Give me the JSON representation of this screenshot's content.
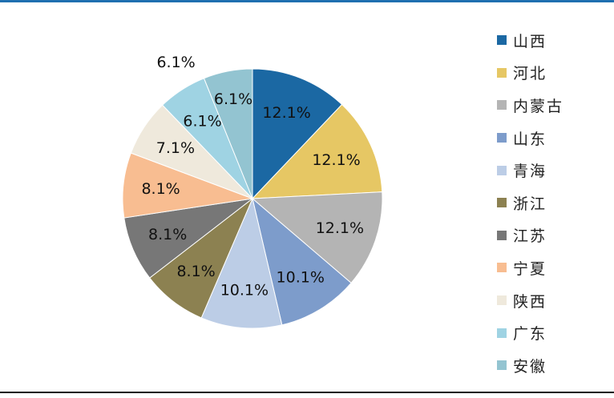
{
  "chart_data": {
    "type": "pie",
    "title": "",
    "start_angle_deg": 0,
    "direction": "clockwise",
    "legend_position": "right",
    "slices": [
      {
        "name": "山西",
        "value": 12.1,
        "label": "12.1%",
        "color": "#1b68a3"
      },
      {
        "name": "河北",
        "value": 12.1,
        "label": "12.1%",
        "color": "#e6c764"
      },
      {
        "name": "内蒙古",
        "value": 12.1,
        "label": "12.1%",
        "color": "#b4b4b4"
      },
      {
        "name": "山东",
        "value": 10.1,
        "label": "10.1%",
        "color": "#7d9ccb"
      },
      {
        "name": "青海",
        "value": 10.1,
        "label": "10.1%",
        "color": "#bccde6"
      },
      {
        "name": "浙江",
        "value": 8.1,
        "label": "8.1%",
        "color": "#8c8151"
      },
      {
        "name": "江苏",
        "value": 8.1,
        "label": "8.1%",
        "color": "#777777"
      },
      {
        "name": "宁夏",
        "value": 8.1,
        "label": "8.1%",
        "color": "#f8bd91"
      },
      {
        "name": "陕西",
        "value": 7.1,
        "label": "7.1%",
        "color": "#efe9dc"
      },
      {
        "name": "广东",
        "value": 6.1,
        "label": "6.1%",
        "color": "#9fd3e3"
      },
      {
        "name": "安徽",
        "value": 6.1,
        "label": "6.1%",
        "color": "#93c4d1"
      }
    ]
  }
}
